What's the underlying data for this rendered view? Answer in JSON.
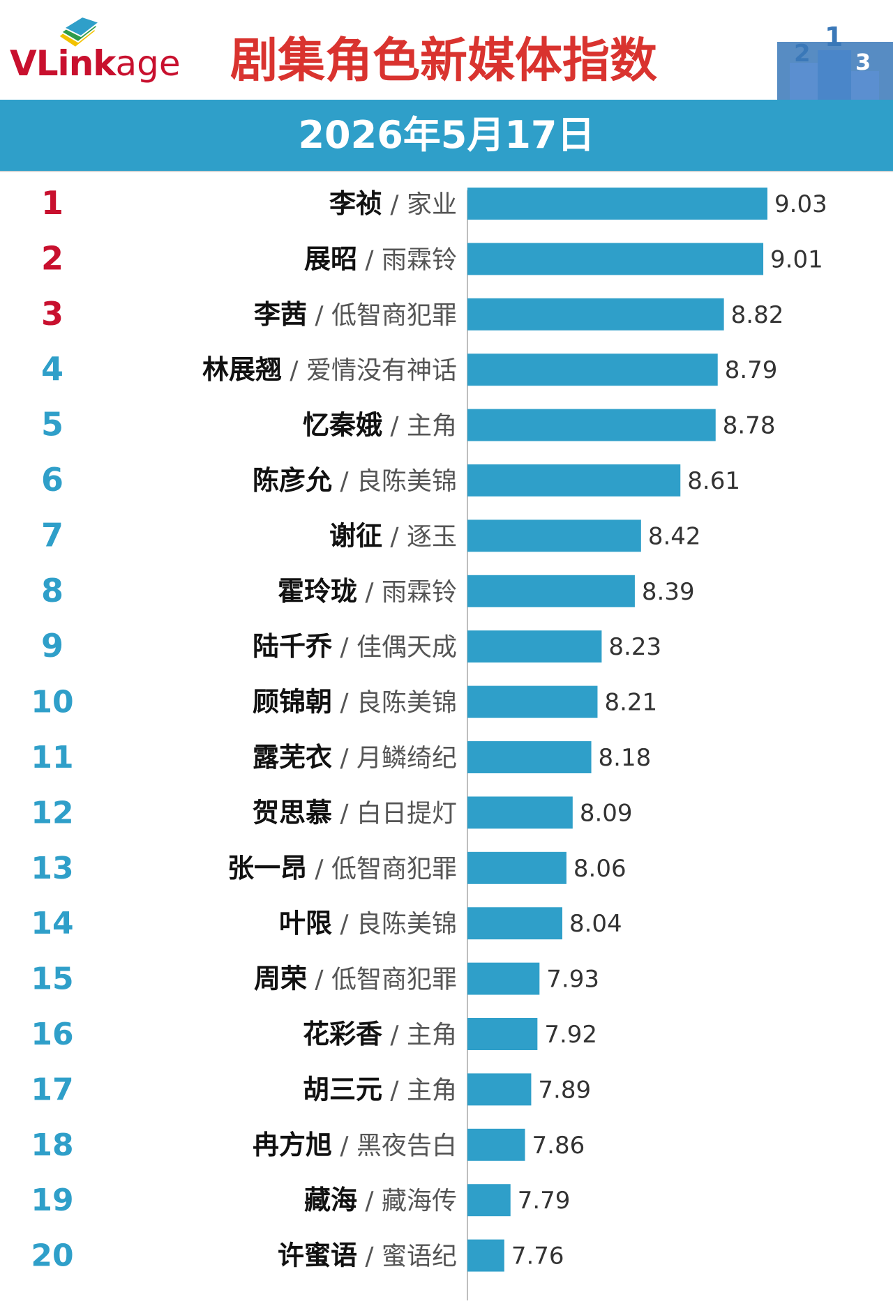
{
  "header": {
    "logo_text_main": "VLink",
    "logo_text_tail": "age",
    "title": "剧集角色新媒体指数",
    "date": "2026年5月17日",
    "podium_labels": [
      "2",
      "1",
      "3"
    ]
  },
  "colors": {
    "brand_red": "#c8102e",
    "title_red": "#d9332f",
    "bar_blue": "#2f9fc9",
    "rank_red": "#c8102e",
    "rank_blue": "#2f9fc9",
    "podium_blue": "#3a78b8"
  },
  "chart_data": {
    "type": "bar",
    "orientation": "horizontal",
    "title": "剧集角色新媒体指数",
    "subtitle": "2026年5月17日",
    "xlabel": "",
    "ylabel": "",
    "grid": false,
    "ranks": [
      "1",
      "2",
      "3",
      "4",
      "5",
      "6",
      "7",
      "8",
      "9",
      "10",
      "11",
      "12",
      "13",
      "14",
      "15",
      "16",
      "17",
      "18",
      "19",
      "20"
    ],
    "characters": [
      "李祯",
      "展昭",
      "李茜",
      "林展翘",
      "忆秦娥",
      "陈彦允",
      "谢征",
      "霍玲珑",
      "陆千乔",
      "顾锦朝",
      "露芜衣",
      "贺思慕",
      "张一昂",
      "叶限",
      "周荣",
      "花彩香",
      "胡三元",
      "冉方旭",
      "藏海",
      "许蜜语"
    ],
    "separator": " / ",
    "dramas": [
      "家业",
      "雨霖铃",
      "低智商犯罪",
      "爱情没有神话",
      "主角",
      "良陈美锦",
      "逐玉",
      "雨霖铃",
      "佳偶天成",
      "良陈美锦",
      "月鳞绮纪",
      "白日提灯",
      "低智商犯罪",
      "良陈美锦",
      "低智商犯罪",
      "主角",
      "主角",
      "黑夜告白",
      "藏海传",
      "蜜语纪"
    ],
    "values": [
      9.03,
      9.01,
      8.82,
      8.79,
      8.78,
      8.61,
      8.42,
      8.39,
      8.23,
      8.21,
      8.18,
      8.09,
      8.06,
      8.04,
      7.93,
      7.92,
      7.89,
      7.86,
      7.79,
      7.76
    ],
    "value_labels": [
      "9.03",
      "9.01",
      "8.82",
      "8.79",
      "8.78",
      "8.61",
      "8.42",
      "8.39",
      "8.23",
      "8.21",
      "8.18",
      "8.09",
      "8.06",
      "8.04",
      "7.93",
      "7.92",
      "7.89",
      "7.86",
      "7.79",
      "7.76"
    ]
  }
}
